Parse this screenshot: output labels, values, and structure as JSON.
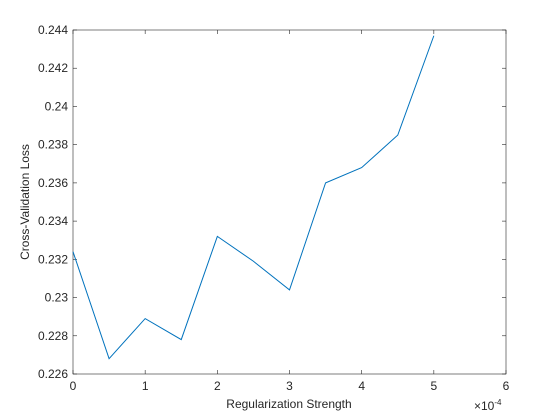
{
  "chart_data": {
    "type": "line",
    "x_label": "Regularization Strength",
    "y_label": "Cross-Validation Loss",
    "x_multiplier": {
      "base": "×10",
      "exponent": "-4"
    },
    "x": [
      0,
      0.5,
      1,
      1.5,
      2,
      2.5,
      3,
      3.5,
      4,
      4.5,
      5
    ],
    "series": [
      {
        "color": "#0072bd",
        "values": [
          0.2324,
          0.2268,
          0.2289,
          0.2278,
          0.2332,
          0.2319,
          0.2304,
          0.236,
          0.2368,
          0.2385,
          0.2437
        ]
      }
    ],
    "xlim": [
      0,
      6
    ],
    "xticks": [
      0,
      1,
      2,
      3,
      4,
      5,
      6
    ],
    "ylim": [
      0.226,
      0.244
    ],
    "yticks": [
      0.226,
      0.228,
      0.23,
      0.232,
      0.234,
      0.236,
      0.238,
      0.24,
      0.242,
      0.244
    ],
    "grid": false
  }
}
